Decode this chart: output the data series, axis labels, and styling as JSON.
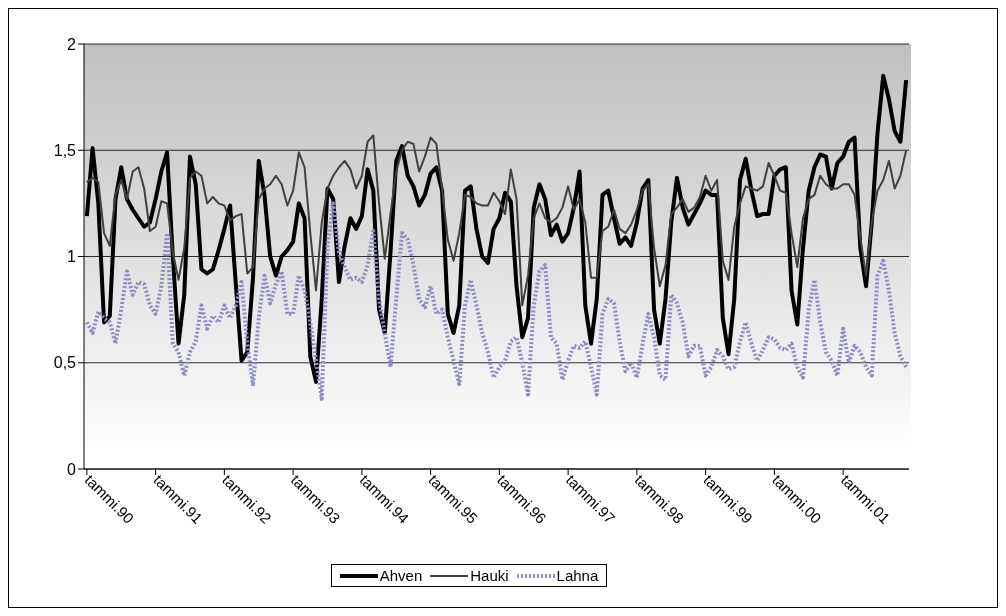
{
  "chart_data": {
    "type": "line",
    "categories": [
      "tammi.90",
      null,
      null,
      null,
      null,
      null,
      null,
      null,
      null,
      null,
      null,
      null,
      "tammi.91",
      null,
      null,
      null,
      null,
      null,
      null,
      null,
      null,
      null,
      null,
      null,
      "tammi.92",
      null,
      null,
      null,
      null,
      null,
      null,
      null,
      null,
      null,
      null,
      null,
      "tammi.93",
      null,
      null,
      null,
      null,
      null,
      null,
      null,
      null,
      null,
      null,
      null,
      "tammi.94",
      null,
      null,
      null,
      null,
      null,
      null,
      null,
      null,
      null,
      null,
      null,
      "tammi.95",
      null,
      null,
      null,
      null,
      null,
      null,
      null,
      null,
      null,
      null,
      null,
      "tammi.96",
      null,
      null,
      null,
      null,
      null,
      null,
      null,
      null,
      null,
      null,
      null,
      "tammi.97",
      null,
      null,
      null,
      null,
      null,
      null,
      null,
      null,
      null,
      null,
      null,
      "tammi.98",
      null,
      null,
      null,
      null,
      null,
      null,
      null,
      null,
      null,
      null,
      null,
      "tammi.99",
      null,
      null,
      null,
      null,
      null,
      null,
      null,
      null,
      null,
      null,
      null,
      "tammi.00",
      null,
      null,
      null,
      null,
      null,
      null,
      null,
      null,
      null,
      null,
      null,
      "tammi.01",
      null,
      null,
      null,
      null,
      null,
      null,
      null,
      null,
      null,
      null,
      null
    ],
    "series": [
      {
        "name": "Ahven",
        "color": "#000000",
        "line_style": "solid",
        "values": [
          1.19,
          1.51,
          1.25,
          0.69,
          0.72,
          1.27,
          1.42,
          1.27,
          1.22,
          1.18,
          1.14,
          1.16,
          1.27,
          1.4,
          1.49,
          1.0,
          0.59,
          0.82,
          1.47,
          1.34,
          0.94,
          0.92,
          0.94,
          1.03,
          1.13,
          1.24,
          0.87,
          0.51,
          0.55,
          0.9,
          1.45,
          1.29,
          1.0,
          0.91,
          1.0,
          1.03,
          1.07,
          1.25,
          1.18,
          0.53,
          0.41,
          0.8,
          1.32,
          1.27,
          0.88,
          1.05,
          1.18,
          1.13,
          1.19,
          1.41,
          1.31,
          0.75,
          0.64,
          1.02,
          1.45,
          1.52,
          1.38,
          1.33,
          1.24,
          1.29,
          1.39,
          1.42,
          1.31,
          0.73,
          0.64,
          0.77,
          1.31,
          1.33,
          1.13,
          1.0,
          0.97,
          1.13,
          1.18,
          1.3,
          1.26,
          0.86,
          0.62,
          0.71,
          1.23,
          1.34,
          1.27,
          1.1,
          1.15,
          1.07,
          1.11,
          1.23,
          1.4,
          0.77,
          0.59,
          0.8,
          1.29,
          1.31,
          1.18,
          1.06,
          1.09,
          1.05,
          1.16,
          1.32,
          1.36,
          0.75,
          0.59,
          0.8,
          1.16,
          1.37,
          1.23,
          1.15,
          1.2,
          1.25,
          1.31,
          1.29,
          1.29,
          0.71,
          0.54,
          0.8,
          1.36,
          1.46,
          1.31,
          1.19,
          1.2,
          1.2,
          1.38,
          1.41,
          1.42,
          0.84,
          0.68,
          1.04,
          1.31,
          1.42,
          1.48,
          1.47,
          1.32,
          1.44,
          1.47,
          1.54,
          1.56,
          1.04,
          0.86,
          1.16,
          1.58,
          1.85,
          1.74,
          1.59,
          1.54,
          1.83
        ]
      },
      {
        "name": "Hauki",
        "color": "#404040",
        "line_style": "solid",
        "values": [
          1.35,
          1.37,
          1.35,
          1.11,
          1.05,
          1.29,
          1.36,
          1.27,
          1.4,
          1.42,
          1.32,
          1.12,
          1.14,
          1.26,
          1.25,
          1.02,
          0.89,
          1.04,
          1.37,
          1.4,
          1.38,
          1.25,
          1.28,
          1.25,
          1.24,
          1.17,
          1.19,
          1.2,
          0.92,
          0.95,
          1.27,
          1.32,
          1.34,
          1.38,
          1.34,
          1.24,
          1.31,
          1.49,
          1.42,
          1.11,
          0.84,
          1.16,
          1.32,
          1.38,
          1.42,
          1.45,
          1.41,
          1.32,
          1.38,
          1.54,
          1.57,
          1.25,
          0.99,
          1.2,
          1.4,
          1.5,
          1.54,
          1.53,
          1.4,
          1.47,
          1.56,
          1.53,
          1.32,
          1.08,
          0.98,
          1.11,
          1.29,
          1.28,
          1.25,
          1.24,
          1.24,
          1.3,
          1.26,
          1.2,
          1.41,
          1.27,
          0.77,
          0.91,
          1.18,
          1.25,
          1.18,
          1.16,
          1.18,
          1.23,
          1.33,
          1.22,
          1.27,
          1.16,
          0.9,
          0.9,
          1.12,
          1.14,
          1.22,
          1.13,
          1.11,
          1.15,
          1.22,
          1.31,
          1.34,
          1.04,
          0.86,
          0.96,
          1.2,
          1.23,
          1.27,
          1.21,
          1.23,
          1.28,
          1.38,
          1.31,
          1.36,
          0.98,
          0.89,
          1.14,
          1.25,
          1.33,
          1.32,
          1.31,
          1.33,
          1.44,
          1.38,
          1.31,
          1.3,
          1.11,
          0.95,
          1.18,
          1.27,
          1.29,
          1.38,
          1.34,
          1.32,
          1.32,
          1.34,
          1.34,
          1.29,
          1.09,
          0.91,
          1.16,
          1.31,
          1.36,
          1.45,
          1.32,
          1.38,
          1.5
        ]
      },
      {
        "name": "Lahna",
        "color": "#8c8cc8",
        "line_style": "dotted",
        "values": [
          0.69,
          0.64,
          0.74,
          0.71,
          0.69,
          0.59,
          0.75,
          0.93,
          0.82,
          0.88,
          0.87,
          0.77,
          0.73,
          0.86,
          1.11,
          0.59,
          0.55,
          0.44,
          0.55,
          0.6,
          0.77,
          0.66,
          0.72,
          0.69,
          0.77,
          0.71,
          0.77,
          0.88,
          0.59,
          0.39,
          0.71,
          0.91,
          0.78,
          0.87,
          0.93,
          0.73,
          0.73,
          0.91,
          0.84,
          0.69,
          0.51,
          0.33,
          1.05,
          1.25,
          1.02,
          0.95,
          0.89,
          0.9,
          0.88,
          0.96,
          1.12,
          0.8,
          0.64,
          0.48,
          0.8,
          1.11,
          1.08,
          0.96,
          0.8,
          0.76,
          0.86,
          0.73,
          0.75,
          0.62,
          0.51,
          0.4,
          0.77,
          0.89,
          0.77,
          0.64,
          0.55,
          0.43,
          0.48,
          0.51,
          0.6,
          0.62,
          0.5,
          0.35,
          0.77,
          0.93,
          0.96,
          0.62,
          0.59,
          0.42,
          0.51,
          0.58,
          0.57,
          0.6,
          0.48,
          0.35,
          0.73,
          0.8,
          0.78,
          0.6,
          0.46,
          0.5,
          0.43,
          0.59,
          0.73,
          0.62,
          0.44,
          0.42,
          0.82,
          0.78,
          0.69,
          0.53,
          0.58,
          0.58,
          0.44,
          0.48,
          0.56,
          0.53,
          0.47,
          0.48,
          0.6,
          0.69,
          0.59,
          0.51,
          0.56,
          0.62,
          0.61,
          0.57,
          0.56,
          0.59,
          0.48,
          0.43,
          0.75,
          0.89,
          0.69,
          0.55,
          0.51,
          0.44,
          0.66,
          0.5,
          0.58,
          0.55,
          0.48,
          0.44,
          0.91,
          0.98,
          0.84,
          0.64,
          0.53,
          0.48
        ]
      }
    ],
    "ylim": [
      0,
      2
    ],
    "yticks": [
      0,
      {
        "value": 0.5,
        "label": "0,5"
      },
      1,
      {
        "value": 1.5,
        "label": "1,5"
      },
      2
    ],
    "grid": "y",
    "legend": "bottom",
    "marker": "none"
  }
}
